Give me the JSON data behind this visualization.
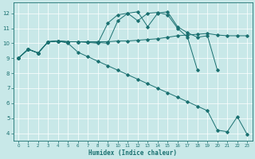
{
  "xlabel": "Humidex (Indice chaleur)",
  "background_color": "#c8e8e8",
  "line_color": "#1a7070",
  "grid_color": "#ffffff",
  "xlim": [
    -0.5,
    23.5
  ],
  "ylim": [
    3.5,
    12.7
  ],
  "yticks": [
    4,
    5,
    6,
    7,
    8,
    9,
    10,
    11,
    12
  ],
  "xticks": [
    0,
    1,
    2,
    3,
    4,
    5,
    6,
    7,
    8,
    9,
    10,
    11,
    12,
    13,
    14,
    15,
    16,
    17,
    18,
    19,
    20,
    21,
    22,
    23
  ],
  "lines": [
    {
      "x": [
        0,
        1,
        2,
        3,
        4,
        5,
        6,
        7,
        8,
        9,
        10,
        11,
        12,
        13,
        14,
        15,
        16,
        17,
        18,
        19,
        20,
        21,
        22,
        23
      ],
      "y": [
        9.0,
        9.6,
        9.35,
        10.1,
        10.15,
        10.1,
        10.1,
        10.1,
        10.1,
        10.1,
        10.15,
        10.15,
        10.2,
        10.25,
        10.3,
        10.4,
        10.5,
        10.55,
        10.6,
        10.65,
        10.55,
        10.5,
        10.5,
        10.5
      ]
    },
    {
      "x": [
        0,
        1,
        2,
        3,
        4,
        5,
        6,
        7,
        8,
        9,
        10,
        11,
        12,
        13,
        14,
        15,
        16,
        17,
        18,
        19,
        20,
        21,
        22,
        23
      ],
      "y": [
        9.0,
        9.6,
        9.35,
        10.1,
        10.15,
        10.0,
        9.4,
        9.1,
        8.8,
        8.5,
        8.2,
        7.9,
        7.6,
        7.3,
        7.0,
        6.7,
        6.4,
        6.1,
        5.8,
        5.5,
        4.2,
        4.1,
        5.1,
        3.9
      ]
    },
    {
      "x": [
        0,
        1,
        2,
        3,
        4,
        5,
        6,
        7,
        8,
        9,
        10,
        11,
        12,
        13,
        14,
        15,
        16,
        17,
        18,
        19,
        20
      ],
      "y": [
        9.0,
        9.6,
        9.35,
        10.1,
        10.15,
        10.1,
        10.1,
        10.1,
        10.05,
        10.0,
        11.5,
        12.0,
        12.1,
        11.1,
        12.0,
        12.1,
        11.1,
        10.7,
        10.4,
        10.5,
        8.2
      ]
    },
    {
      "x": [
        0,
        1,
        2,
        3,
        4,
        5,
        6,
        7,
        8,
        9,
        10,
        11,
        12,
        13,
        14,
        15,
        16,
        17,
        18
      ],
      "y": [
        9.0,
        9.6,
        9.35,
        10.1,
        10.15,
        10.1,
        10.1,
        10.05,
        10.0,
        11.35,
        11.9,
        12.0,
        11.5,
        12.0,
        12.05,
        11.9,
        11.0,
        10.4,
        8.2
      ]
    }
  ]
}
